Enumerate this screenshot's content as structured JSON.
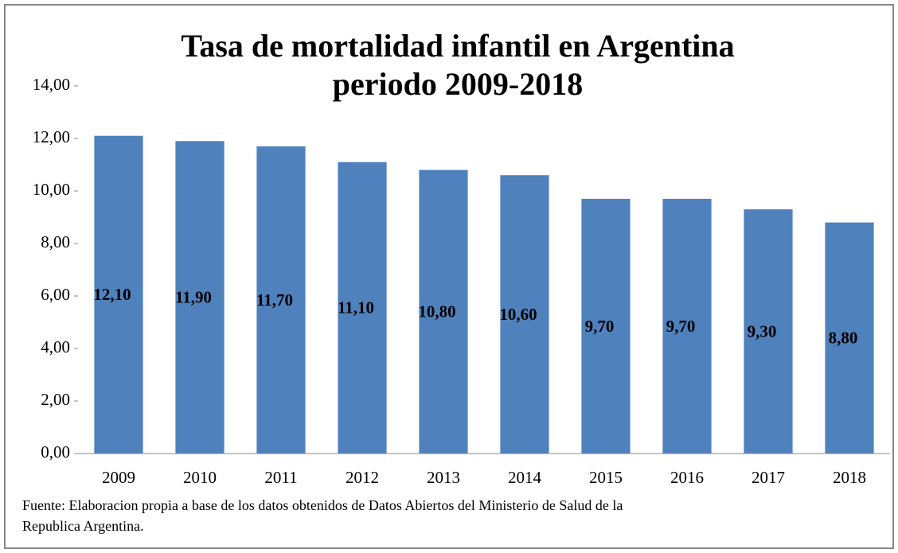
{
  "chart_data": {
    "type": "bar",
    "title": "Tasa de mortalidad infantil en Argentina",
    "subtitle": "periodo 2009-2018",
    "categories": [
      "2009",
      "2010",
      "2011",
      "2012",
      "2013",
      "2014",
      "2015",
      "2016",
      "2017",
      "2018"
    ],
    "values": [
      12.1,
      11.9,
      11.7,
      11.1,
      10.8,
      10.6,
      9.7,
      9.7,
      9.3,
      8.8
    ],
    "value_labels": [
      "12,10",
      "11,90",
      "11,70",
      "11,10",
      "10,80",
      "10,60",
      "9,70",
      "9,70",
      "9,30",
      "8,80"
    ],
    "color": "#4f81bd",
    "ylim": [
      0,
      14
    ],
    "yticks": [
      {
        "value": 0,
        "label": "0,00"
      },
      {
        "value": 2,
        "label": "2,00"
      },
      {
        "value": 4,
        "label": "4,00"
      },
      {
        "value": 6,
        "label": "6,00"
      },
      {
        "value": 8,
        "label": "8,00"
      },
      {
        "value": 10,
        "label": "10,00"
      },
      {
        "value": 12,
        "label": "12,00"
      },
      {
        "value": 14,
        "label": "14,00"
      }
    ],
    "grid": false,
    "source": [
      "Fuente: Elaboracion propia a base de los datos obtenidos de  Datos Abiertos del  Ministerio  de Salud  de la",
      "Republica  Argentina."
    ]
  }
}
